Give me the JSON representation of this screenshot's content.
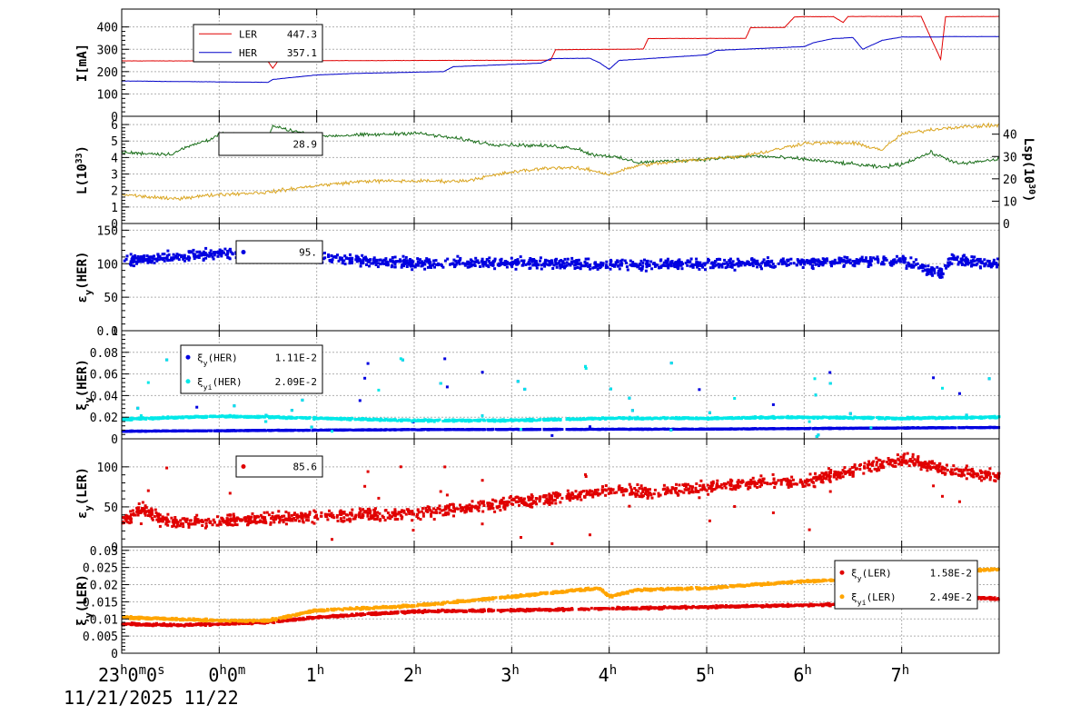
{
  "chart_data": [
    {
      "type": "line",
      "ylabel": "I[mA]",
      "ylim": [
        0,
        480
      ],
      "yticks": [
        0,
        100,
        200,
        300,
        400
      ],
      "legend": [
        {
          "name": "LER",
          "value": "447.3",
          "color": "#e00000"
        },
        {
          "name": "HER",
          "value": "357.1",
          "color": "#0000c8"
        }
      ],
      "series": [
        {
          "name": "LER",
          "color": "#e00000",
          "x": [
            0,
            0.9,
            1.5,
            1.55,
            1.6,
            2,
            3,
            4.4,
            4.45,
            5.35,
            5.4,
            6.4,
            6.45,
            6.8,
            6.9,
            7.0,
            7.3,
            7.4,
            7.45,
            8.2,
            8.3,
            8.4,
            8.45,
            9
          ],
          "y": [
            248,
            248,
            246,
            215,
            246,
            249,
            250,
            251,
            298,
            301,
            348,
            349,
            397,
            398,
            445,
            446,
            446,
            420,
            447,
            447,
            350,
            255,
            446,
            447
          ]
        },
        {
          "name": "HER",
          "color": "#0000c8",
          "x": [
            0,
            0.5,
            1.5,
            1.55,
            2,
            2.4,
            3.3,
            3.4,
            4.3,
            4.4,
            4.8,
            4.9,
            5.0,
            5.1,
            6.0,
            6.1,
            7.0,
            7.1,
            7.3,
            7.4,
            7.5,
            7.6,
            7.8,
            8.0,
            8.4,
            8.45,
            9
          ],
          "y": [
            158,
            156,
            152,
            165,
            185,
            192,
            200,
            222,
            238,
            258,
            260,
            240,
            210,
            250,
            275,
            295,
            312,
            330,
            348,
            350,
            353,
            300,
            340,
            355,
            355,
            357,
            357
          ]
        }
      ]
    },
    {
      "type": "line",
      "ylabel": "L(10",
      "ylabel_sup": "33",
      "ylabel_end": ")",
      "y2label": "Lsp(10",
      "y2label_sup": "30",
      "y2label_end": ")",
      "ylim": [
        0,
        6.5
      ],
      "yticks": [
        0,
        1,
        2,
        3,
        4,
        5,
        6
      ],
      "y2lim": [
        0,
        48
      ],
      "y2ticks": [
        0,
        10,
        20,
        30,
        40
      ],
      "legend": [
        {
          "value": "28.9",
          "color": "#1a6e1a"
        }
      ],
      "series": [
        {
          "name": "L",
          "color": "#1a6e1a",
          "x": [
            0,
            0.5,
            0.7,
            0.9,
            1.0,
            1.5,
            1.55,
            2,
            2.7,
            3.0,
            3.5,
            3.8,
            4.4,
            4.6,
            4.7,
            4.8,
            5.0,
            5.3,
            6.0,
            6.5,
            7.0,
            7.5,
            7.8,
            8.0,
            8.3,
            8.6,
            9
          ],
          "y": [
            4.3,
            4.2,
            4.7,
            5.1,
            5.4,
            5.3,
            5.9,
            5.3,
            5.4,
            5.5,
            5.1,
            4.8,
            4.7,
            4.6,
            4.5,
            4.2,
            4.1,
            3.7,
            3.9,
            4.1,
            3.9,
            3.6,
            3.4,
            3.6,
            4.3,
            3.6,
            3.9
          ]
        },
        {
          "name": "Lsp",
          "color": "#daa520",
          "axis": "y2",
          "x": [
            0,
            0.5,
            1.0,
            1.5,
            2,
            2.5,
            3.0,
            3.5,
            4.0,
            4.4,
            4.6,
            4.8,
            5.0,
            5.3,
            6.0,
            6.3,
            6.6,
            7.0,
            7.5,
            7.8,
            8.0,
            8.3,
            8.5,
            9
          ],
          "y": [
            13,
            11,
            13,
            14,
            17,
            19,
            19,
            19,
            23,
            25,
            25,
            24,
            22,
            26,
            29,
            30,
            32,
            36,
            36,
            33,
            40,
            42,
            43,
            44
          ]
        }
      ]
    },
    {
      "type": "scatter",
      "ylabel": "ε",
      "ylabel_sub": "y",
      "ylabel_end": "(HER)",
      "ylim": [
        0,
        160
      ],
      "yticks": [
        0,
        50,
        100,
        150
      ],
      "legend": [
        {
          "value": "95.",
          "color": "#0000e0"
        }
      ],
      "series": [
        {
          "name": "εy(HER)",
          "color": "#0000e0",
          "x": [
            0,
            1,
            2,
            3,
            4,
            5,
            6,
            7,
            8,
            8.4,
            8.5,
            9
          ],
          "y": [
            105,
            115,
            110,
            100,
            102,
            98,
            100,
            102,
            105,
            85,
            105,
            100
          ]
        }
      ]
    },
    {
      "type": "scatter",
      "ylabel": "ξ",
      "ylabel_sub": "y",
      "ylabel_end": "(HER)",
      "ylim": [
        0,
        0.1
      ],
      "yticks": [
        0,
        0.02,
        0.04,
        0.06,
        0.08,
        0.1
      ],
      "ytick_labels": [
        "0",
        "0.02",
        "0.04",
        "0.06",
        "0.08",
        "0.1"
      ],
      "legend": [
        {
          "sym": "ξ",
          "sub": "y",
          "end": "(HER)",
          "value": "1.11E-2",
          "color": "#0000e0"
        },
        {
          "sym": "ξ",
          "sub": "yi",
          "end": "(HER)",
          "value": "2.09E-2",
          "color": "#00e8e8"
        }
      ],
      "series": [
        {
          "name": "ξy(HER)",
          "color": "#0000e0",
          "x": [
            0,
            3,
            6,
            9
          ],
          "y": [
            0.007,
            0.0085,
            0.009,
            0.0105
          ]
        },
        {
          "name": "ξyi(HER)",
          "color": "#00e8e8",
          "x": [
            0,
            1,
            2,
            3,
            4,
            5,
            6,
            7,
            8,
            9
          ],
          "y": [
            0.018,
            0.021,
            0.019,
            0.017,
            0.017,
            0.019,
            0.019,
            0.02,
            0.019,
            0.02
          ]
        }
      ]
    },
    {
      "type": "scatter",
      "ylabel": "ε",
      "ylabel_sub": "y",
      "ylabel_end": "(LER)",
      "ylim": [
        0,
        135
      ],
      "yticks": [
        0,
        50,
        100
      ],
      "legend": [
        {
          "value": "85.6",
          "color": "#e00000"
        }
      ],
      "series": [
        {
          "name": "εy(LER)",
          "color": "#e00000",
          "x": [
            0,
            0.2,
            0.5,
            1,
            2,
            3,
            3.5,
            4,
            4.5,
            5,
            5.5,
            6,
            6.5,
            7,
            7.5,
            8,
            8.5,
            9
          ],
          "y": [
            30,
            48,
            30,
            32,
            38,
            42,
            48,
            55,
            62,
            70,
            68,
            75,
            80,
            82,
            95,
            110,
            95,
            88
          ]
        }
      ]
    },
    {
      "type": "scatter",
      "ylabel": "ξ",
      "ylabel_sub": "y",
      "ylabel_end": "(LER)",
      "ylim": [
        0,
        0.031
      ],
      "yticks": [
        0,
        0.005,
        0.01,
        0.015,
        0.02,
        0.025,
        0.03
      ],
      "ytick_labels": [
        "0",
        "0.005",
        "0.01",
        "0.015",
        "0.02",
        "0.025",
        "0.03"
      ],
      "legend": [
        {
          "sym": "ξ",
          "sub": "y",
          "end": "(LER)",
          "value": "1.58E-2",
          "color": "#e00000"
        },
        {
          "sym": "ξ",
          "sub": "yi",
          "end": "(LER)",
          "value": "2.49E-2",
          "color": "#ffa500"
        }
      ],
      "series": [
        {
          "name": "ξy(LER)",
          "color": "#e00000",
          "x": [
            0,
            0.5,
            1,
            1.5,
            2,
            3,
            4,
            5,
            6,
            7,
            8,
            8.6,
            9
          ],
          "y": [
            0.0085,
            0.0082,
            0.0085,
            0.009,
            0.0105,
            0.0122,
            0.0125,
            0.013,
            0.0135,
            0.014,
            0.0145,
            0.0165,
            0.0158
          ]
        },
        {
          "name": "ξyi(LER)",
          "color": "#ffa500",
          "x": [
            0,
            0.5,
            1,
            1.5,
            2,
            3,
            4,
            4.9,
            5,
            5.3,
            6,
            7,
            8,
            8.6,
            9
          ],
          "y": [
            0.0105,
            0.01,
            0.0095,
            0.0095,
            0.0125,
            0.0138,
            0.0165,
            0.019,
            0.0165,
            0.0185,
            0.019,
            0.021,
            0.022,
            0.024,
            0.0245
          ]
        }
      ]
    }
  ],
  "x_axis": {
    "range": [
      0,
      9
    ],
    "ticks": [
      {
        "x": 0,
        "main": "23",
        "sup": "h",
        "rest": "0",
        "sup2": "m",
        "rest2": "0",
        "sup3": "s"
      },
      {
        "x": 1,
        "main": "0",
        "sup": "h",
        "rest": "0",
        "sup2": "m",
        "rest2": "",
        "sup3": ""
      },
      {
        "x": 2,
        "main": "1",
        "sup": "h",
        "rest": "",
        "sup2": "",
        "rest2": "",
        "sup3": ""
      },
      {
        "x": 3,
        "main": "2",
        "sup": "h",
        "rest": "",
        "sup2": "",
        "rest2": "",
        "sup3": ""
      },
      {
        "x": 4,
        "main": "3",
        "sup": "h",
        "rest": "",
        "sup2": "",
        "rest2": "",
        "sup3": ""
      },
      {
        "x": 5,
        "main": "4",
        "sup": "h",
        "rest": "",
        "sup2": "",
        "rest2": "",
        "sup3": ""
      },
      {
        "x": 6,
        "main": "5",
        "sup": "h",
        "rest": "",
        "sup2": "",
        "rest2": "",
        "sup3": ""
      },
      {
        "x": 7,
        "main": "6",
        "sup": "h",
        "rest": "",
        "sup2": "",
        "rest2": "",
        "sup3": ""
      },
      {
        "x": 8,
        "main": "7",
        "sup": "h",
        "rest": "",
        "sup2": "",
        "rest2": "",
        "sup3": ""
      }
    ],
    "date_text": "11/21/2025 11/22"
  }
}
